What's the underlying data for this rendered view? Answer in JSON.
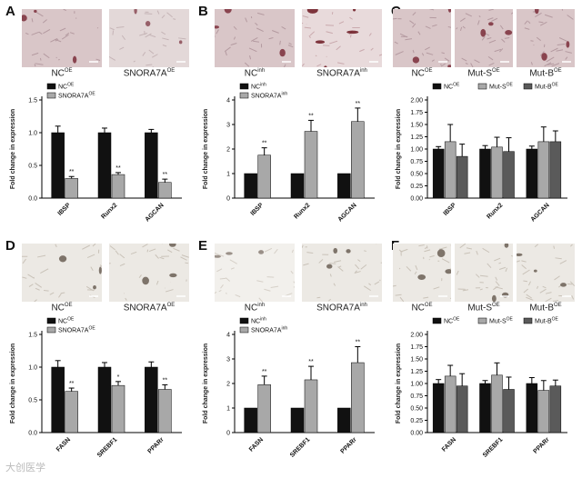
{
  "panels": [
    {
      "label": "A",
      "images": [
        {
          "name": "NC",
          "sup": "OE",
          "tone": "pink"
        },
        {
          "name": "SNORA7A",
          "sup": "OE",
          "tone": "pink-light"
        }
      ],
      "legend": [
        {
          "name": "NC",
          "sup": "OE"
        },
        {
          "name": "SNORA7A",
          "sup": "OE"
        }
      ],
      "legend_position": "top-left"
    },
    {
      "label": "B",
      "images": [
        {
          "name": "NC",
          "sup": "inh",
          "tone": "pink"
        },
        {
          "name": "SNORA7A",
          "sup": "inh",
          "tone": "pink-stained"
        }
      ],
      "legend": [
        {
          "name": "NC",
          "sup": "inh"
        },
        {
          "name": "SNORA7A",
          "sup": "inh"
        }
      ],
      "legend_position": "top-left"
    },
    {
      "label": "C",
      "images": [
        {
          "name": "NC",
          "sup": "OE",
          "tone": "pink"
        },
        {
          "name": "Mut-S",
          "sup": "OE",
          "tone": "pink"
        },
        {
          "name": "Mut-B",
          "sup": "OE",
          "tone": "pink"
        }
      ],
      "legend": [
        {
          "name": "NC",
          "sup": "OE"
        },
        {
          "name": "Mut-S",
          "sup": "OE"
        },
        {
          "name": "Mut-B",
          "sup": "OE"
        }
      ],
      "legend_position": "top"
    },
    {
      "label": "D",
      "images": [
        {
          "name": "NC",
          "sup": "OE",
          "tone": "gray"
        },
        {
          "name": "SNORA7A",
          "sup": "OE",
          "tone": "gray"
        }
      ],
      "legend": [
        {
          "name": "NC",
          "sup": "OE"
        },
        {
          "name": "SNORA7A",
          "sup": "OE"
        }
      ],
      "legend_position": "top-left"
    },
    {
      "label": "E",
      "images": [
        {
          "name": "NC",
          "sup": "inh",
          "tone": "gray-light"
        },
        {
          "name": "SNORA7A",
          "sup": "inh",
          "tone": "gray"
        }
      ],
      "legend": [
        {
          "name": "NC",
          "sup": "inh"
        },
        {
          "name": "SNORA7A",
          "sup": "inh"
        }
      ],
      "legend_position": "top-left"
    },
    {
      "label": "F",
      "images": [
        {
          "name": "NC",
          "sup": "OE",
          "tone": "gray"
        },
        {
          "name": "Mut-S",
          "sup": "OE",
          "tone": "gray"
        },
        {
          "name": "Mut-B",
          "sup": "OE",
          "tone": "gray"
        }
      ],
      "legend": [
        {
          "name": "NC",
          "sup": "OE"
        },
        {
          "name": "Mut-S",
          "sup": "OE"
        },
        {
          "name": "Mut-B",
          "sup": "OE"
        }
      ],
      "legend_position": "top"
    }
  ],
  "series_colors": [
    "#111111",
    "#a8a8a8",
    "#5a5a5a"
  ],
  "watermark": "大创医学",
  "chart_data": [
    {
      "type": "bar",
      "panel": "A",
      "categories": [
        "IBSP",
        "Runx2",
        "AGCAN"
      ],
      "ylabel": "Fold change in expression",
      "ylim": [
        0,
        1.5
      ],
      "yticks": [
        "0.0",
        "0.5",
        "1.0",
        "1.5"
      ],
      "series": [
        {
          "name": "NC OE",
          "values": [
            1.0,
            1.0,
            1.0
          ],
          "errors": [
            0.1,
            0.07,
            0.05
          ]
        },
        {
          "name": "SNORA7A OE",
          "values": [
            0.3,
            0.36,
            0.24
          ],
          "errors": [
            0.03,
            0.03,
            0.05
          ]
        }
      ],
      "annotations": [
        "**",
        "**",
        "**"
      ]
    },
    {
      "type": "bar",
      "panel": "B",
      "categories": [
        "IBSP",
        "Runx2",
        "AGCAN"
      ],
      "ylabel": "Fold change in expression",
      "ylim": [
        0,
        4
      ],
      "yticks": [
        "0",
        "1",
        "2",
        "3",
        "4"
      ],
      "series": [
        {
          "name": "NC inh",
          "values": [
            1.0,
            1.0,
            1.0
          ],
          "errors": [
            0,
            0,
            0
          ]
        },
        {
          "name": "SNORA7A inh",
          "values": [
            1.75,
            2.72,
            3.12
          ],
          "errors": [
            0.3,
            0.45,
            0.55
          ]
        }
      ],
      "annotations": [
        "**",
        "**",
        "**"
      ]
    },
    {
      "type": "bar",
      "panel": "C",
      "categories": [
        "IBSP",
        "Runx2",
        "AGCAN"
      ],
      "ylabel": "Fold change in expression",
      "ylim": [
        0,
        2.0
      ],
      "yticks": [
        "0.00",
        "0.25",
        "0.50",
        "0.75",
        "1.00",
        "1.25",
        "1.50",
        "1.75",
        "2.00"
      ],
      "series": [
        {
          "name": "NC OE",
          "values": [
            1.0,
            1.0,
            1.0
          ],
          "errors": [
            0.05,
            0.07,
            0.06
          ]
        },
        {
          "name": "Mut-S OE",
          "values": [
            1.15,
            1.04,
            1.15
          ],
          "errors": [
            0.35,
            0.2,
            0.3
          ]
        },
        {
          "name": "Mut-B OE",
          "values": [
            0.85,
            0.95,
            1.15
          ],
          "errors": [
            0.25,
            0.28,
            0.22
          ]
        }
      ],
      "annotations": []
    },
    {
      "type": "bar",
      "panel": "D",
      "categories": [
        "FASN",
        "SREBF1",
        "PPARr"
      ],
      "ylabel": "Fold change in expression",
      "ylim": [
        0,
        1.5
      ],
      "yticks": [
        "0.0",
        "0.5",
        "1.0",
        "1.5"
      ],
      "series": [
        {
          "name": "NC OE",
          "values": [
            1.0,
            1.0,
            1.0
          ],
          "errors": [
            0.1,
            0.07,
            0.08
          ]
        },
        {
          "name": "SNORA7A OE",
          "values": [
            0.63,
            0.72,
            0.66
          ],
          "errors": [
            0.05,
            0.06,
            0.07
          ]
        }
      ],
      "annotations": [
        "**",
        "*",
        "**"
      ]
    },
    {
      "type": "bar",
      "panel": "E",
      "categories": [
        "FASN",
        "SREBF1",
        "PPARr"
      ],
      "ylabel": "Fold change in expression",
      "ylim": [
        0,
        4
      ],
      "yticks": [
        "0",
        "1",
        "2",
        "3",
        "4"
      ],
      "series": [
        {
          "name": "NC inh",
          "values": [
            1.0,
            1.0,
            1.0
          ],
          "errors": [
            0,
            0,
            0
          ]
        },
        {
          "name": "SNORA7A inh",
          "values": [
            1.95,
            2.15,
            2.85
          ],
          "errors": [
            0.35,
            0.55,
            0.65
          ]
        }
      ],
      "annotations": [
        "**",
        "**",
        "**"
      ]
    },
    {
      "type": "bar",
      "panel": "F",
      "categories": [
        "FASN",
        "SREBF1",
        "PPARr"
      ],
      "ylabel": "Fold change in expression",
      "ylim": [
        0,
        2.0
      ],
      "yticks": [
        "0.00",
        "0.25",
        "0.50",
        "0.75",
        "1.00",
        "1.25",
        "1.50",
        "1.75",
        "2.00"
      ],
      "series": [
        {
          "name": "NC OE",
          "values": [
            1.0,
            1.0,
            1.0
          ],
          "errors": [
            0.08,
            0.06,
            0.12
          ]
        },
        {
          "name": "Mut-S OE",
          "values": [
            1.15,
            1.17,
            0.86
          ],
          "errors": [
            0.22,
            0.25,
            0.2
          ]
        },
        {
          "name": "Mut-B OE",
          "values": [
            0.95,
            0.88,
            0.95
          ],
          "errors": [
            0.25,
            0.25,
            0.12
          ]
        }
      ],
      "annotations": []
    }
  ]
}
